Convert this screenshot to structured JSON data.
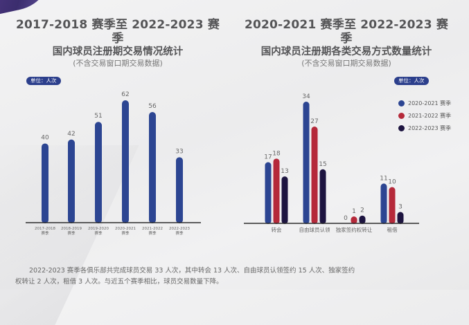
{
  "chart_data": [
    {
      "type": "bar",
      "title": "2017-2018 赛季至 2022-2023 赛季",
      "subtitle": "国内球员注册期交易情况统计",
      "note": "(不含交易窗口期交易数据)",
      "unit": "单位：人次",
      "xlabel": "",
      "ylabel": "",
      "categories": [
        [
          "2017-2018",
          "赛季"
        ],
        [
          "2018-2019",
          "赛季"
        ],
        [
          "2019-2020",
          "赛季"
        ],
        [
          "2020-2021",
          "赛季"
        ],
        [
          "2021-2022",
          "赛季"
        ],
        [
          "2022-2023",
          "赛季"
        ]
      ],
      "values": [
        40,
        42,
        51,
        62,
        56,
        33
      ],
      "color": "#2c4592",
      "ylim": [
        0,
        62
      ],
      "grid": false
    },
    {
      "type": "bar",
      "title": "2020-2021 赛季至 2022-2023 赛季",
      "subtitle": "国内球员注册期各类交易方式数量统计",
      "note": "(不含交易窗口期交易数据)",
      "unit": "单位：人次",
      "xlabel": "",
      "ylabel": "",
      "categories": [
        "转会",
        "自由球员认领",
        "独家签约权转让",
        "租借"
      ],
      "series": [
        {
          "name": "2020-2021 赛季",
          "values": [
            17,
            34,
            0,
            11
          ],
          "color": "#2c4592"
        },
        {
          "name": "2021-2022 赛季",
          "values": [
            18,
            27,
            1,
            10
          ],
          "color": "#b5293a"
        },
        {
          "name": "2022-2023 赛季",
          "values": [
            13,
            15,
            2,
            3
          ],
          "color": "#1d1440"
        }
      ],
      "legend": "right",
      "ylim": [
        0,
        34
      ],
      "grid": false
    }
  ],
  "caption": {
    "line1": "2022-2023 赛季各俱乐部共完成球员交易 33 人次，其中转会 13 人次、自由球员认领签约 15 人次、独家签约",
    "line2": "权转让 2 人次，租借 3 人次。与近五个赛季相比，球员交易数量下降。"
  }
}
